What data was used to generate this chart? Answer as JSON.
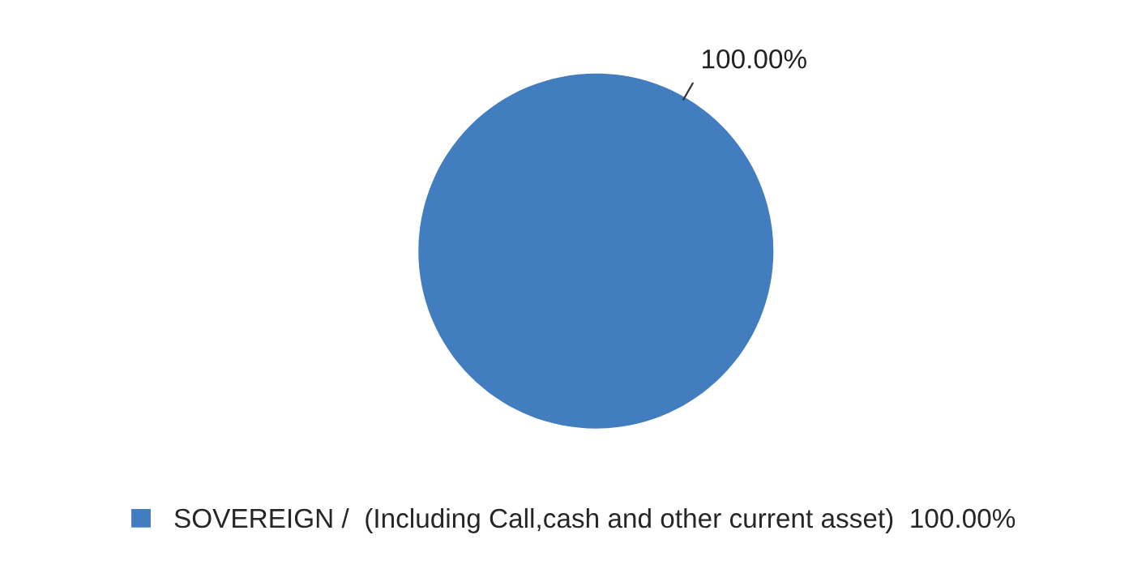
{
  "chart_data": {
    "type": "pie",
    "categories": [
      "SOVEREIGN /  (Including Call,cash and other current asset)"
    ],
    "values": [
      100
    ],
    "colors": [
      "#427dbf"
    ],
    "value_labels": [
      "100.00%"
    ],
    "legend": "bottom"
  }
}
